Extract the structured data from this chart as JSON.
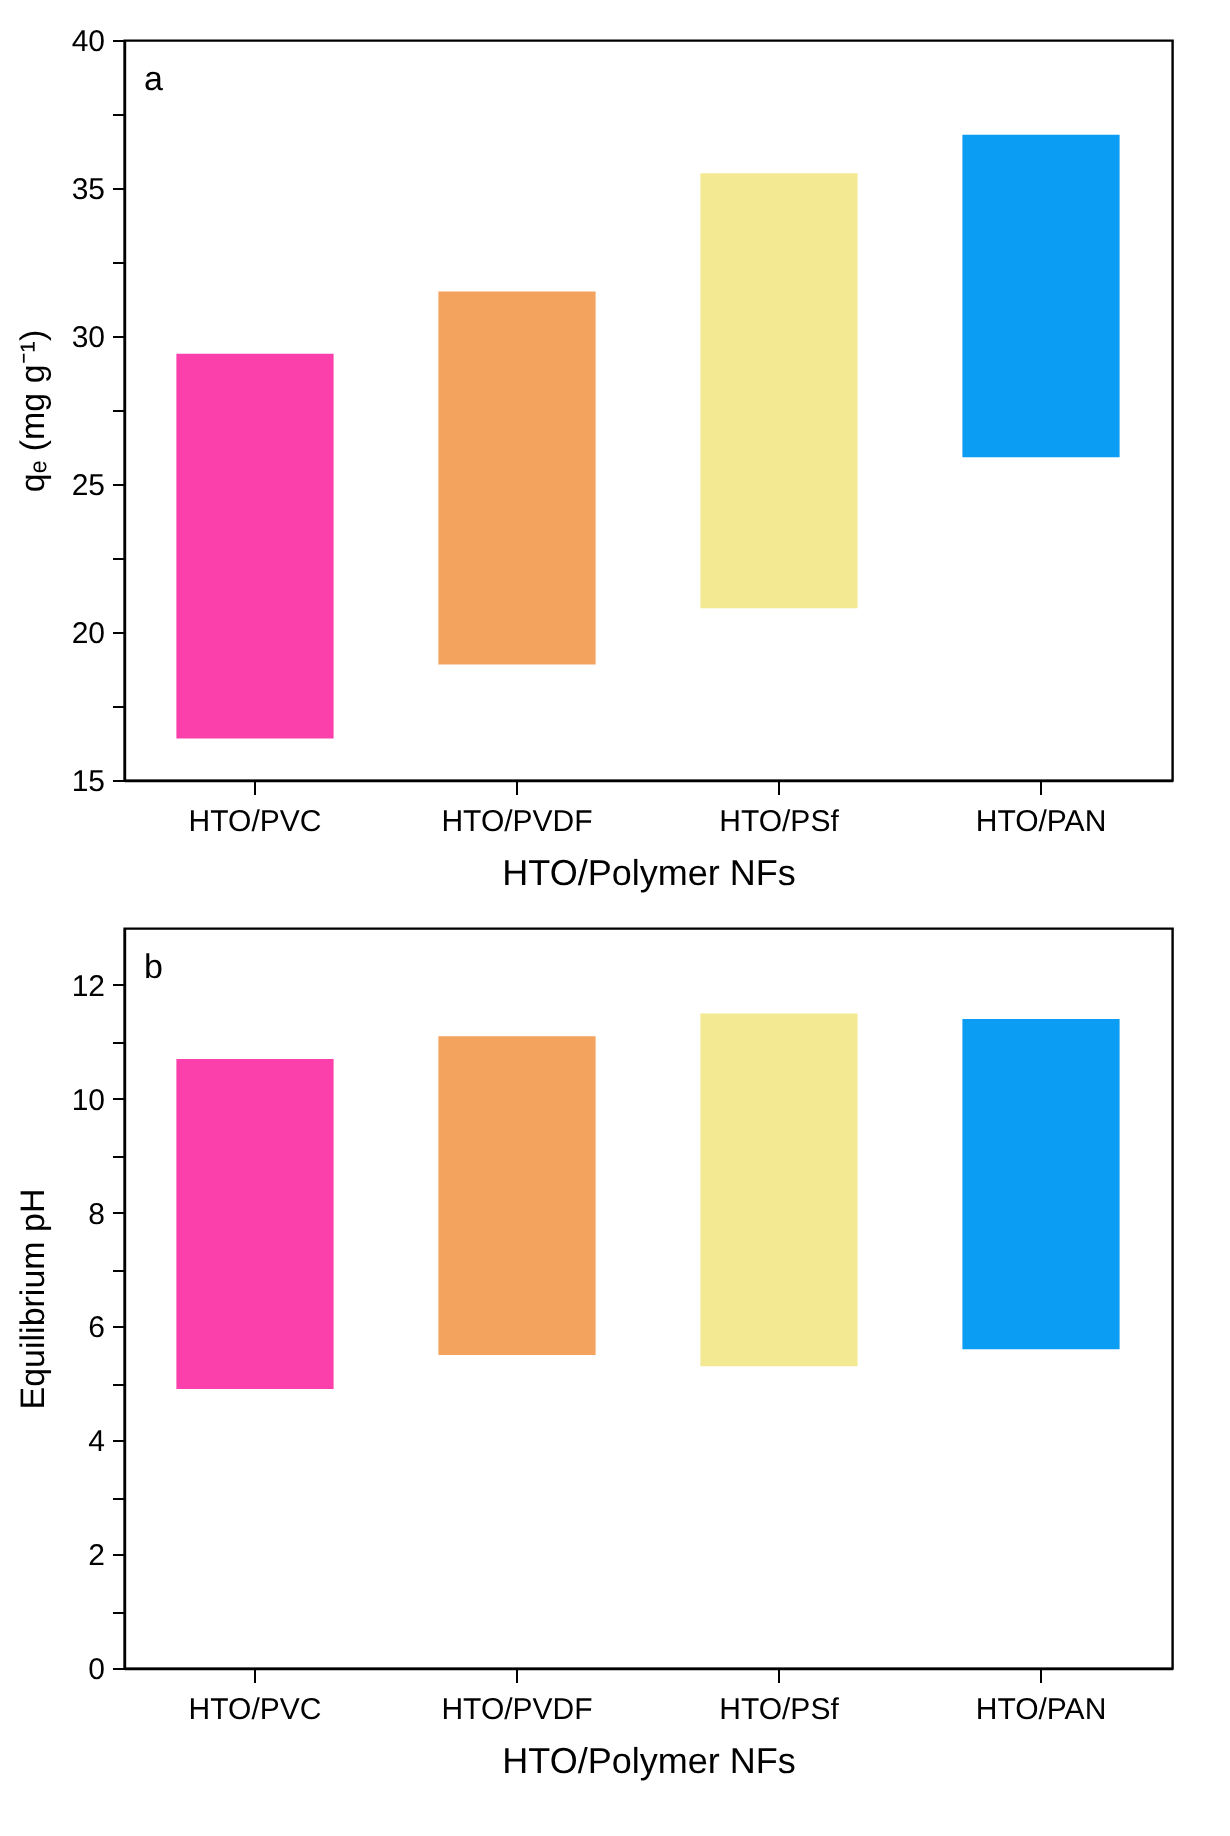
{
  "chart_data": [
    {
      "type": "bar",
      "xlabel": "HTO/Polymer NFs",
      "ylabel": "qₑ (mg g⁻¹)",
      "annotations": [
        "a"
      ],
      "categories": [
        "HTO/PVC",
        "HTO/PVDF",
        "HTO/PSf",
        "HTO/PAN"
      ],
      "base": [
        16.4,
        18.9,
        20.8,
        25.9
      ],
      "values": [
        13.0,
        12.6,
        14.7,
        10.9
      ],
      "colors": [
        "#fb3fab",
        "#f4a35f",
        "#f2e992",
        "#0a9df3"
      ],
      "ylim": [
        15,
        40
      ],
      "yticks": [
        15,
        {
          "value": 17.5,
          "label": null
        },
        20,
        {
          "value": 22.5,
          "label": null
        },
        25,
        {
          "value": 27.5,
          "label": null
        },
        30,
        {
          "value": 32.5,
          "label": null
        },
        35,
        {
          "value": 37.5,
          "label": null
        },
        40
      ],
      "grid": false
    },
    {
      "type": "bar",
      "xlabel": "HTO/Polymer NFs",
      "ylabel": "Equilibrium pH",
      "annotations": [
        "b"
      ],
      "categories": [
        "HTO/PVC",
        "HTO/PVDF",
        "HTO/PSf",
        "HTO/PAN"
      ],
      "base": [
        4.9,
        5.5,
        5.3,
        5.6
      ],
      "values": [
        5.8,
        5.6,
        6.2,
        5.8
      ],
      "colors": [
        "#fb3fab",
        "#f4a35f",
        "#f2e992",
        "#0a9df3"
      ],
      "ylim": [
        0,
        13
      ],
      "yticks": [
        0,
        {
          "value": 1,
          "label": null
        },
        2,
        {
          "value": 3,
          "label": null
        },
        4,
        {
          "value": 5,
          "label": null
        },
        6,
        {
          "value": 7,
          "label": null
        },
        8,
        {
          "value": 9,
          "label": null
        },
        10,
        {
          "value": 11,
          "label": null
        },
        12
      ],
      "grid": false
    }
  ]
}
